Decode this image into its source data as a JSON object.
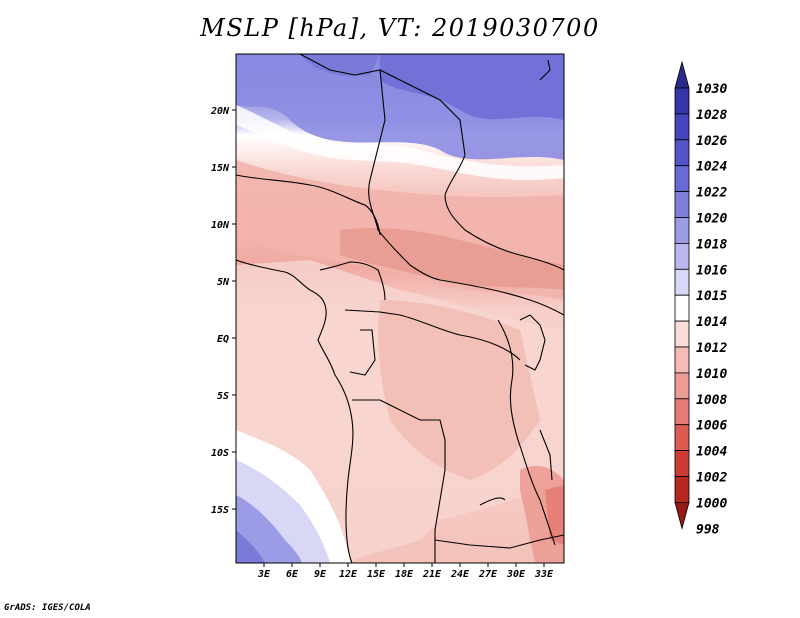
{
  "title": "MSLP [hPa], VT: 2019030700",
  "credit": "GrADS: IGES/COLA",
  "map": {
    "variable": "MSLP",
    "units": "hPa",
    "valid_time": "2019030700",
    "lon_ticks": [
      "3E",
      "6E",
      "9E",
      "12E",
      "15E",
      "18E",
      "21E",
      "24E",
      "27E",
      "30E",
      "33E"
    ],
    "lat_ticks": [
      "20N",
      "15N",
      "10N",
      "5N",
      "EQ",
      "5S",
      "10S",
      "15S"
    ]
  },
  "colorbar": {
    "levels": [
      "1030",
      "1028",
      "1026",
      "1024",
      "1022",
      "1020",
      "1018",
      "1016",
      "1015",
      "1014",
      "1012",
      "1010",
      "1008",
      "1006",
      "1004",
      "1002",
      "1000",
      "998"
    ],
    "colors": [
      "#2a2a8c",
      "#3636a8",
      "#4646bc",
      "#5454c8",
      "#6a6ad4",
      "#8080dc",
      "#9c9ce6",
      "#b8b8ee",
      "#d8d8f6",
      "#ffffff",
      "#fadcd8",
      "#f4bcb4",
      "#ec9c94",
      "#e47c74",
      "#dc5c54",
      "#cc3c34",
      "#b42820",
      "#961a14"
    ]
  }
}
